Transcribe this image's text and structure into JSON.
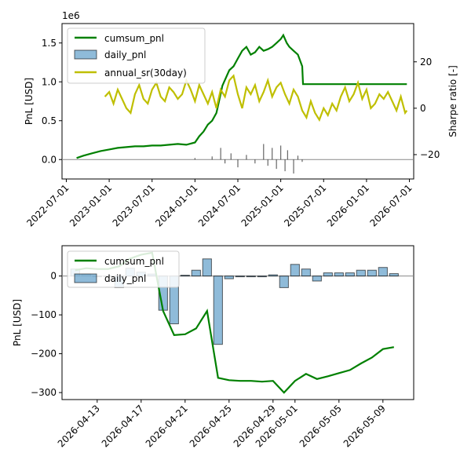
{
  "chart_data": [
    {
      "type": "line",
      "ylabel": "PnL [USD]",
      "ylabel_right": "Sharpe ratio [-]",
      "y_offset_label": "1e6",
      "ylim": [
        -0.25,
        1.75
      ],
      "ylim_right": [
        -30.5,
        36.5
      ],
      "y_ticks": [
        "0.0",
        "0.5",
        "1.0",
        "1.5"
      ],
      "y_tick_values": [
        0,
        0.5,
        1.0,
        1.5
      ],
      "y_right_ticks": [
        "−20",
        "0",
        "20"
      ],
      "y_right_tick_values": [
        -20,
        0,
        20
      ],
      "x_ticks": [
        "2022-07-01",
        "2023-01-01",
        "2023-07-01",
        "2024-01-01",
        "2024-07-01",
        "2025-01-01",
        "2025-07-01",
        "2026-01-01",
        "2026-07-01"
      ],
      "x_tick_values": [
        2022.5,
        2023.0,
        2023.5,
        2024.0,
        2024.5,
        2025.0,
        2025.5,
        2026.0,
        2026.5
      ],
      "xlim": [
        2022.45,
        2026.55
      ],
      "legend": "top-left",
      "colors": {
        "cumsum": "#008000",
        "daily": "#1f77b4",
        "sr": "#bfbf00"
      },
      "series": [
        {
          "name": "cumsum_pnl",
          "x": [
            2022.62,
            2022.7,
            2022.8,
            2022.9,
            2023.0,
            2023.1,
            2023.2,
            2023.3,
            2023.4,
            2023.5,
            2023.6,
            2023.7,
            2023.8,
            2023.9,
            2024.0,
            2024.05,
            2024.1,
            2024.15,
            2024.2,
            2024.25,
            2024.28,
            2024.32,
            2024.36,
            2024.4,
            2024.45,
            2024.5,
            2024.55,
            2024.6,
            2024.65,
            2024.7,
            2024.75,
            2024.8,
            2024.85,
            2024.9,
            2024.95,
            2025.0,
            2025.03,
            2025.07,
            2025.1,
            2025.15,
            2025.2,
            2025.25,
            2025.26,
            2025.4,
            2025.6,
            2025.8,
            2026.0,
            2026.2,
            2026.4,
            2026.47
          ],
          "values": [
            0.02,
            0.05,
            0.08,
            0.11,
            0.13,
            0.15,
            0.16,
            0.17,
            0.17,
            0.18,
            0.18,
            0.19,
            0.2,
            0.19,
            0.22,
            0.3,
            0.36,
            0.45,
            0.5,
            0.6,
            0.75,
            0.95,
            1.05,
            1.15,
            1.2,
            1.3,
            1.4,
            1.45,
            1.35,
            1.38,
            1.45,
            1.4,
            1.42,
            1.45,
            1.5,
            1.55,
            1.6,
            1.5,
            1.45,
            1.4,
            1.35,
            1.2,
            0.97,
            0.97,
            0.97,
            0.97,
            0.97,
            0.97,
            0.97,
            0.97
          ]
        },
        {
          "name": "daily_pnl",
          "x": [
            2024.0,
            2024.2,
            2024.3,
            2024.35,
            2024.42,
            2024.5,
            2024.6,
            2024.7,
            2024.8,
            2024.85,
            2024.9,
            2024.95,
            2025.0,
            2025.05,
            2025.08,
            2025.15,
            2025.2,
            2025.25
          ],
          "values": [
            0.02,
            0.04,
            0.15,
            -0.05,
            0.08,
            -0.1,
            0.06,
            -0.05,
            0.2,
            -0.08,
            0.15,
            -0.12,
            0.18,
            -0.15,
            0.12,
            -0.18,
            0.05,
            -0.03
          ]
        },
        {
          "name": "annual_sr(30day)",
          "x": [
            2022.95,
            2023.0,
            2023.05,
            2023.1,
            2023.15,
            2023.2,
            2023.25,
            2023.3,
            2023.35,
            2023.4,
            2023.45,
            2023.5,
            2023.55,
            2023.6,
            2023.65,
            2023.7,
            2023.75,
            2023.8,
            2023.85,
            2023.9,
            2023.95,
            2024.0,
            2024.05,
            2024.1,
            2024.15,
            2024.2,
            2024.25,
            2024.3,
            2024.35,
            2024.4,
            2024.45,
            2024.5,
            2024.55,
            2024.6,
            2024.65,
            2024.7,
            2024.75,
            2024.8,
            2024.85,
            2024.9,
            2024.95,
            2025.0,
            2025.05,
            2025.1,
            2025.15,
            2025.2,
            2025.25,
            2025.3,
            2025.35,
            2025.4,
            2025.45,
            2025.5,
            2025.55,
            2025.6,
            2025.65,
            2025.7,
            2025.75,
            2025.8,
            2025.85,
            2025.9,
            2025.95,
            2026.0,
            2026.05,
            2026.1,
            2026.15,
            2026.2,
            2026.25,
            2026.3,
            2026.35,
            2026.4,
            2026.45,
            2026.47
          ],
          "values": [
            5,
            7,
            2,
            8,
            4,
            0,
            -2,
            6,
            10,
            4,
            2,
            8,
            11,
            5,
            3,
            9,
            7,
            4,
            6,
            12,
            8,
            3,
            10,
            6,
            2,
            7,
            0,
            8,
            5,
            12,
            14,
            6,
            0,
            9,
            6,
            10,
            3,
            7,
            12,
            5,
            9,
            11,
            6,
            2,
            8,
            5,
            -1,
            -4,
            3,
            -2,
            -5,
            0,
            -3,
            2,
            -1,
            5,
            9,
            3,
            6,
            11,
            4,
            8,
            0,
            2,
            6,
            4,
            7,
            3,
            -1,
            5,
            -2,
            -1
          ]
        }
      ]
    },
    {
      "type": "bar",
      "ylabel": "PnL [USD]",
      "ylim": [
        -318,
        78
      ],
      "y_ticks": [
        "−300",
        "−200",
        "−100",
        "0"
      ],
      "y_tick_values": [
        -300,
        -200,
        -100,
        0
      ],
      "x_ticks": [
        "2026-04-13",
        "2026-04-17",
        "2026-04-21",
        "2026-04-25",
        "2026-04-29",
        "2026-05-01",
        "2026-05-05",
        "2026-05-09"
      ],
      "x_tick_values": [
        3,
        7,
        11,
        15,
        19,
        21,
        25,
        29
      ],
      "xlim": [
        -0.2,
        31.8
      ],
      "legend": "top-left",
      "colors": {
        "cumsum": "#008000",
        "daily": "#1f77b4"
      },
      "series": [
        {
          "name": "cumsum_pnl",
          "x": [
            1,
            2,
            3,
            4,
            5,
            6,
            7,
            8,
            9,
            10,
            11,
            12,
            13,
            14,
            15,
            16,
            17,
            18,
            19,
            20,
            21,
            22,
            23,
            24,
            25,
            26,
            27,
            28,
            29,
            30
          ],
          "values": [
            15,
            20,
            18,
            18,
            25,
            45,
            55,
            60,
            -90,
            -152,
            -150,
            -135,
            -90,
            -262,
            -268,
            -270,
            -270,
            -272,
            -270,
            -300,
            -270,
            -252,
            -265,
            -258,
            -250,
            -242,
            -225,
            -210,
            -188,
            -183
          ]
        },
        {
          "name": "daily_pnl",
          "x": [
            1,
            2,
            3,
            4,
            5,
            6,
            7,
            8,
            9,
            10,
            11,
            12,
            13,
            14,
            15,
            16,
            17,
            18,
            19,
            20,
            21,
            22,
            23,
            24,
            25,
            26,
            27,
            28,
            29,
            30
          ],
          "values": [
            18,
            5,
            -2,
            0,
            -30,
            20,
            10,
            5,
            -88,
            -123,
            2,
            15,
            44,
            -176,
            -7,
            -2,
            -2,
            -2,
            3,
            -30,
            30,
            18,
            -13,
            8,
            8,
            8,
            15,
            15,
            22,
            6
          ]
        }
      ]
    }
  ]
}
